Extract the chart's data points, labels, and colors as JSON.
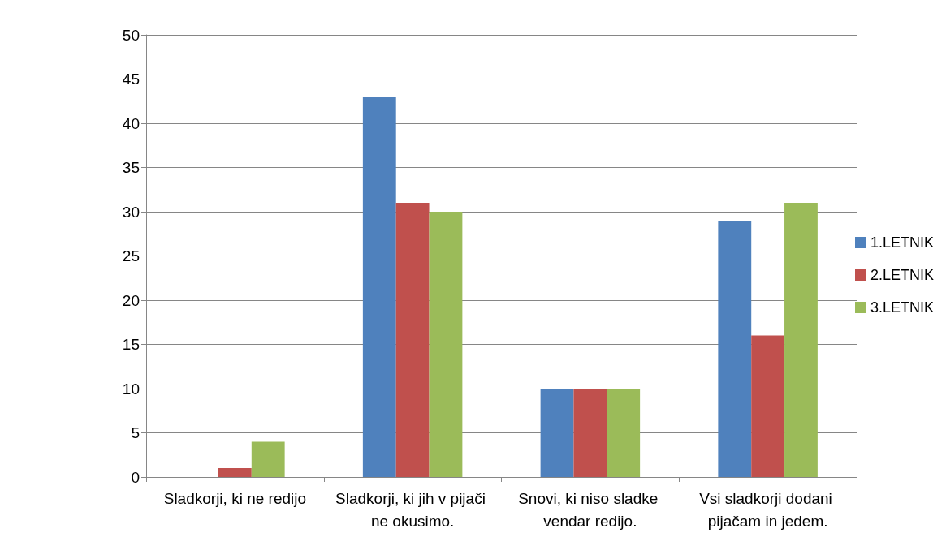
{
  "chart_data": {
    "type": "bar",
    "categories": [
      "Sladkorji, ki ne redijo",
      "Sladkorji, ki jih v pijači ne okusimo.",
      "Snovi, ki niso sladke vendar redijo.",
      "Vsi sladkorji dodani pijačam in jedem."
    ],
    "series": [
      {
        "name": "1.LETNIK",
        "color": "#4f81bd",
        "values": [
          0,
          43,
          10,
          29
        ]
      },
      {
        "name": "2.LETNIK",
        "color": "#c0504d",
        "values": [
          1,
          31,
          10,
          16
        ]
      },
      {
        "name": "3.LETNIK",
        "color": "#9bbb59",
        "values": [
          4,
          30,
          10,
          31
        ]
      }
    ],
    "ylim": [
      0,
      50
    ],
    "yticks": [
      0,
      5,
      10,
      15,
      20,
      25,
      30,
      35,
      40,
      45,
      50
    ],
    "grid": "y",
    "legend": "right"
  }
}
